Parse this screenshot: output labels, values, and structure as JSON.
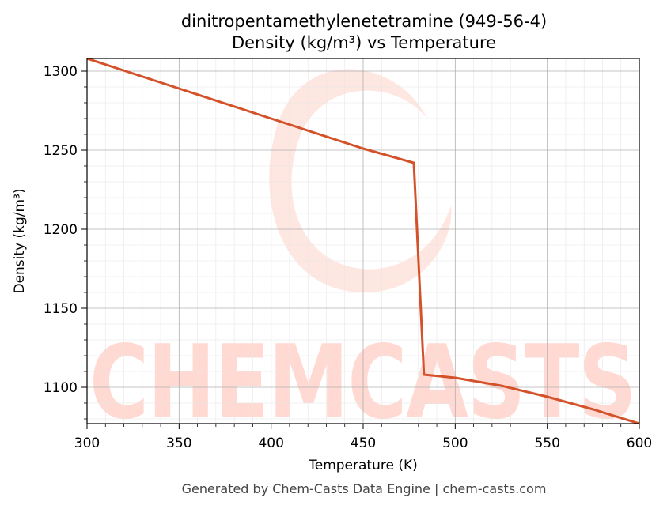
{
  "chart_data": {
    "type": "line",
    "title_line1": "dinitropentamethylenetetramine (949-56-4)",
    "title_line2": "Density (kg/m³) vs Temperature",
    "xlabel": "Temperature (K)",
    "ylabel": "Density (kg/m³)",
    "xlim": [
      300,
      600
    ],
    "ylim": [
      1077,
      1308
    ],
    "xticks": [
      300,
      350,
      400,
      450,
      500,
      550,
      600
    ],
    "yticks": [
      1100,
      1150,
      1200,
      1250,
      1300
    ],
    "grid": true,
    "series": [
      {
        "color": "#d4522a",
        "x": [
          300,
          350,
          400,
          450,
          477.5,
          483,
          500,
          525,
          550,
          575,
          600
        ],
        "y": [
          1308,
          1289,
          1270,
          1251,
          1242,
          1108,
          1106,
          1101,
          1094,
          1086,
          1077
        ]
      }
    ]
  },
  "watermark": {
    "text": "CHEMCASTS",
    "color": "#ffd9d2"
  },
  "footer": "Generated by Chem-Casts Data Engine | chem-casts.com"
}
